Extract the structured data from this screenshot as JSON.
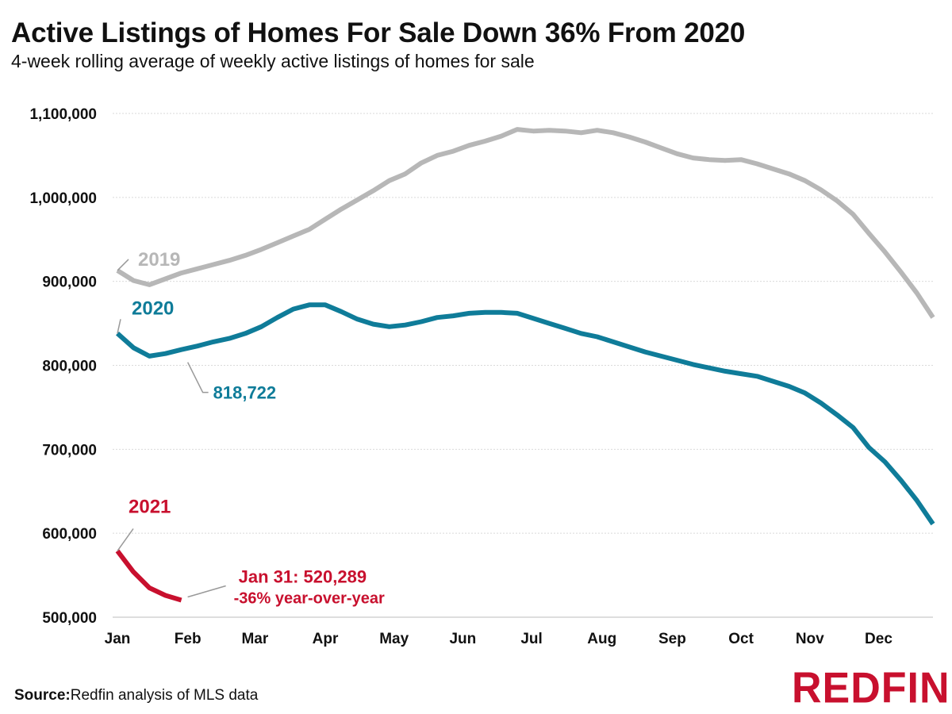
{
  "title": "Active Listings of Homes For Sale Down 36% From 2020",
  "subtitle": "4-week rolling average of weekly active listings of homes for sale",
  "source": {
    "label": "Source:",
    "text": "Redfin analysis of MLS data"
  },
  "logo": "REDFIN",
  "chart_data": {
    "type": "line",
    "title": "Active Listings of Homes For Sale Down 36% From 2020",
    "xlabel": "",
    "ylabel": "",
    "ylim": [
      500000,
      1100000
    ],
    "yticks": [
      500000,
      600000,
      700000,
      800000,
      900000,
      1000000,
      1100000
    ],
    "ytick_labels": [
      "500,000",
      "600,000",
      "700,000",
      "800,000",
      "900,000",
      "1,000,000",
      "1,100,000"
    ],
    "xlim": [
      1,
      52
    ],
    "x_month_ticks": [
      {
        "label": "Jan",
        "week": 1
      },
      {
        "label": "Feb",
        "week": 5.4
      },
      {
        "label": "Mar",
        "week": 9.6
      },
      {
        "label": "Apr",
        "week": 14
      },
      {
        "label": "May",
        "week": 18.3
      },
      {
        "label": "Jun",
        "week": 22.6
      },
      {
        "label": "Jul",
        "week": 26.9
      },
      {
        "label": "Aug",
        "week": 31.3
      },
      {
        "label": "Sep",
        "week": 35.7
      },
      {
        "label": "Oct",
        "week": 40
      },
      {
        "label": "Nov",
        "week": 44.3
      },
      {
        "label": "Dec",
        "week": 48.6
      }
    ],
    "grid": true,
    "series": [
      {
        "name": "2019",
        "color": "#b7b7b7",
        "x": [
          1,
          2,
          3,
          4,
          5,
          6,
          7,
          8,
          9,
          10,
          11,
          12,
          13,
          14,
          15,
          16,
          17,
          18,
          19,
          20,
          21,
          22,
          23,
          24,
          25,
          26,
          27,
          28,
          29,
          30,
          31,
          32,
          33,
          34,
          35,
          36,
          37,
          38,
          39,
          40,
          41,
          42,
          43,
          44,
          45,
          46,
          47,
          48,
          49,
          50,
          51,
          52
        ],
        "values": [
          913000,
          901000,
          896000,
          903000,
          910000,
          915000,
          920000,
          925000,
          931000,
          938000,
          946000,
          954000,
          962000,
          974000,
          986000,
          997000,
          1008000,
          1020000,
          1028000,
          1041000,
          1050000,
          1055000,
          1062000,
          1067000,
          1073000,
          1081000,
          1079000,
          1080000,
          1079000,
          1077000,
          1080000,
          1077000,
          1072000,
          1066000,
          1059000,
          1052000,
          1047000,
          1045000,
          1044000,
          1045000,
          1040000,
          1034000,
          1028000,
          1020000,
          1009000,
          996000,
          980000,
          957000,
          935000,
          911000,
          886000,
          857000
        ]
      },
      {
        "name": "2020",
        "color": "#0f7c99",
        "x": [
          1,
          2,
          3,
          4,
          5,
          6,
          7,
          8,
          9,
          10,
          11,
          12,
          13,
          14,
          15,
          16,
          17,
          18,
          19,
          20,
          21,
          22,
          23,
          24,
          25,
          26,
          27,
          28,
          29,
          30,
          31,
          32,
          33,
          34,
          35,
          36,
          37,
          38,
          39,
          40,
          41,
          42,
          43,
          44,
          45,
          46,
          47,
          48,
          49,
          50,
          51,
          52
        ],
        "values": [
          838000,
          821000,
          811000,
          814000,
          818722,
          823000,
          828000,
          832000,
          838000,
          846000,
          857000,
          867000,
          872000,
          872000,
          864000,
          855000,
          849000,
          846000,
          848000,
          852000,
          857000,
          859000,
          862000,
          863000,
          863000,
          862000,
          856000,
          850000,
          844000,
          838000,
          834000,
          828000,
          822000,
          816000,
          811000,
          806000,
          801000,
          797000,
          793000,
          790000,
          787000,
          781000,
          775000,
          767000,
          755000,
          741000,
          726000,
          702000,
          685000,
          663000,
          639000,
          611000
        ]
      },
      {
        "name": "2021",
        "color": "#c8102e",
        "x": [
          1,
          2,
          3,
          4,
          5
        ],
        "values": [
          579000,
          554000,
          535000,
          526000,
          520289
        ]
      }
    ],
    "annotations": [
      {
        "text": "2019",
        "series": "2019",
        "x": 1,
        "y": 913000
      },
      {
        "text": "2020",
        "series": "2020",
        "x": 1,
        "y": 838000
      },
      {
        "text": "818,722",
        "series": "2020",
        "x": 5,
        "y": 818722
      },
      {
        "text": "2021",
        "series": "2021",
        "x": 1,
        "y": 579000
      },
      {
        "text": "Jan 31: 520,289",
        "series": "2021",
        "x": 5,
        "y": 520289
      },
      {
        "text": "-36% year-over-year",
        "series": "2021",
        "x": 5,
        "y": 520289
      }
    ]
  }
}
